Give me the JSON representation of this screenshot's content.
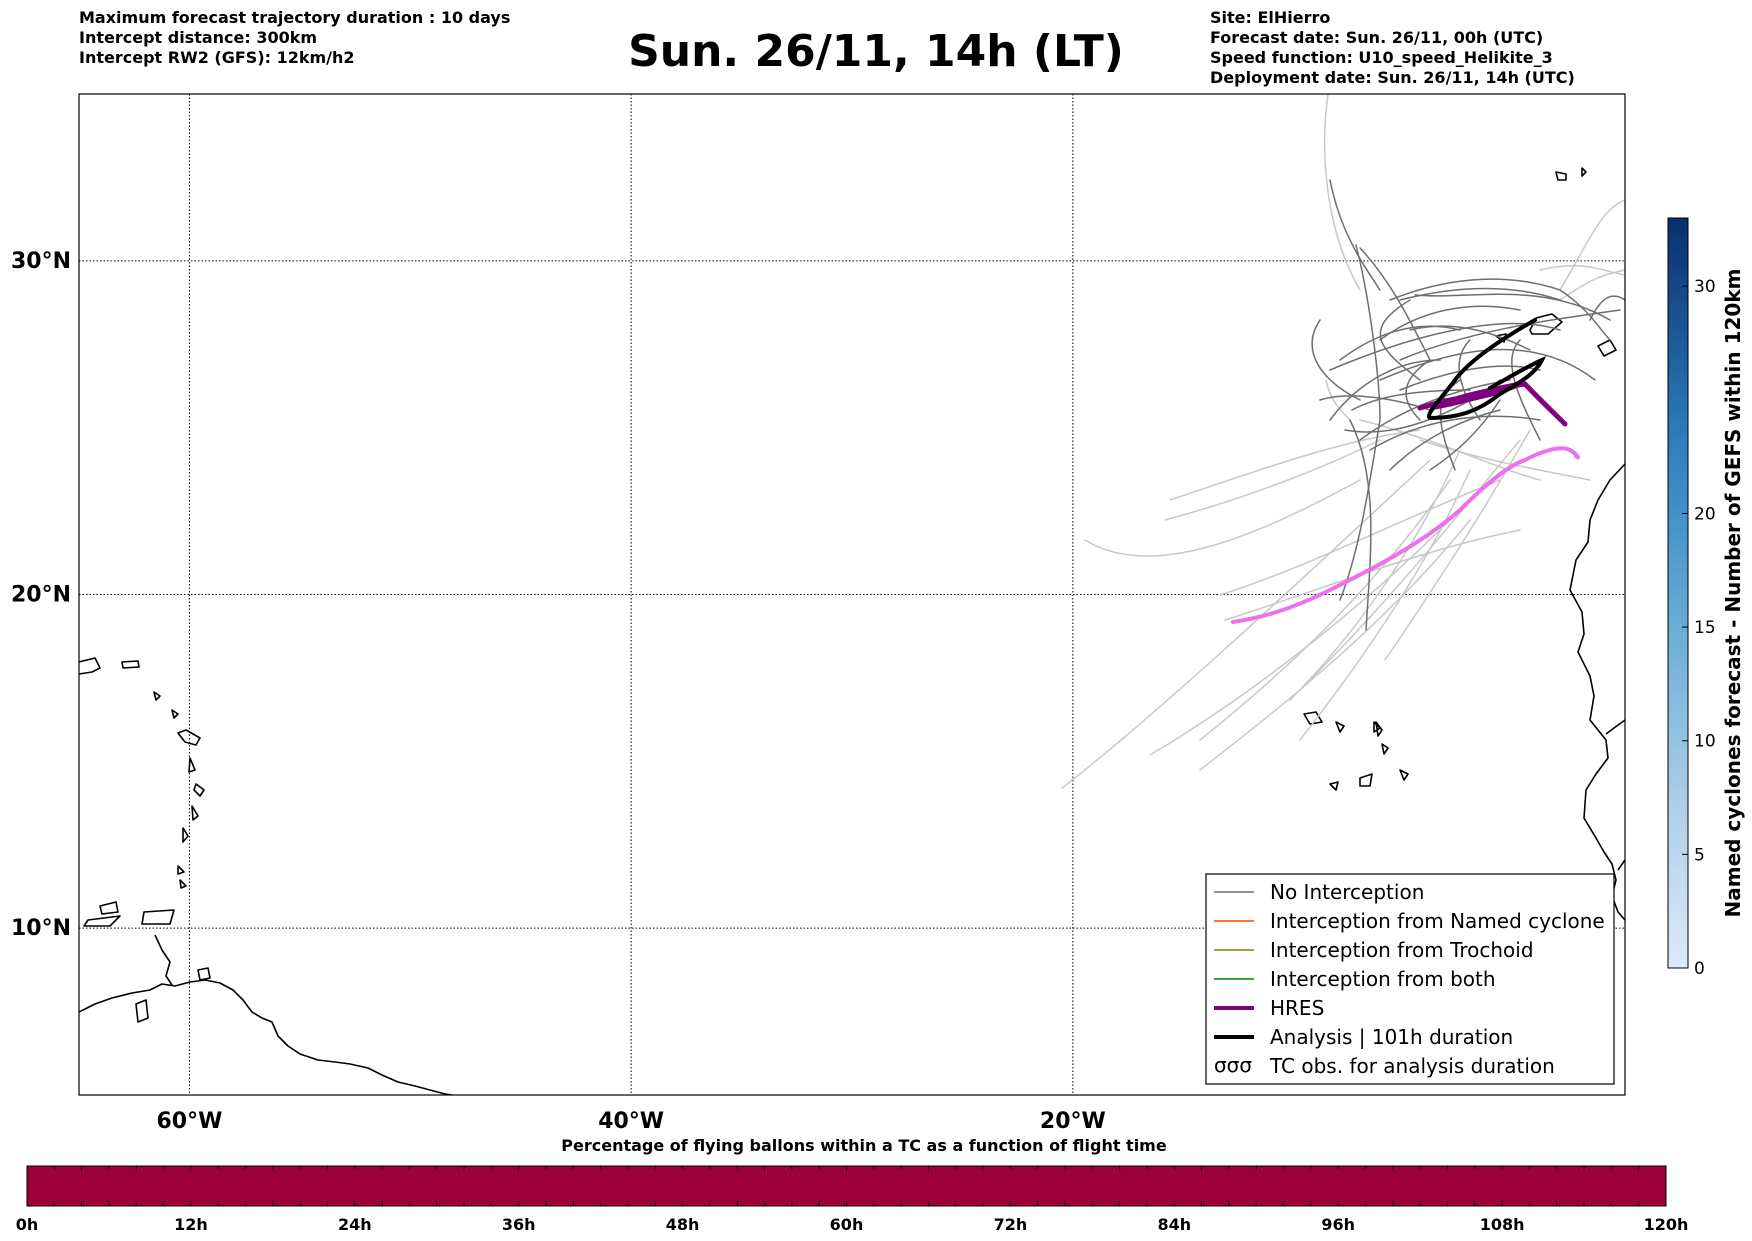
{
  "header": {
    "title": "Sun. 26/11, 14h (LT)",
    "left_lines": [
      "Maximum forecast trajectory duration : 10 days",
      "Intercept distance: 300km",
      "Intercept RW2 (GFS):  12km/h2"
    ],
    "right_lines": [
      "Site: ElHierro",
      "Forecast date: Sun. 26/11, 00h (UTC)",
      "Speed function: U10_speed_Helikite_3",
      "Deployment date: Sun. 26/11, 14h (UTC)"
    ]
  },
  "map": {
    "lon_range": [
      -65,
      5
    ],
    "lat_range": [
      5,
      35
    ],
    "lat_ticks": [
      {
        "value": 30,
        "label": "30°N"
      },
      {
        "value": 20,
        "label": "20°N"
      },
      {
        "value": 10,
        "label": "10°N"
      }
    ],
    "lon_ticks": [
      {
        "value": -60,
        "label": "60°W"
      },
      {
        "value": -40,
        "label": "40°W"
      },
      {
        "value": -20,
        "label": "20°W"
      }
    ],
    "grid": true,
    "legend": {
      "position": "bottom-right",
      "items": [
        {
          "label": "No Interception",
          "color": "#6e6e6e",
          "style": "thin"
        },
        {
          "label": "Interception from Named cyclone",
          "color": "#ff4500",
          "style": "thin"
        },
        {
          "label": "Interception from Trochoid",
          "color": "#808000",
          "style": "thin"
        },
        {
          "label": "Interception from both",
          "color": "#008000",
          "style": "thin"
        },
        {
          "label": "HRES",
          "color": "#800080",
          "style": "thick"
        },
        {
          "label": "Analysis | 101h duration",
          "color": "#000000",
          "style": "thick"
        },
        {
          "label": "TC obs. for analysis duration",
          "color": "#000000",
          "style": "symbol"
        }
      ]
    },
    "colors": {
      "trajectory_dark": "#6e6e6e",
      "trajectory_light": "#c8c8c8",
      "hres_main": "#800080",
      "hres_extension": "#ee70ee",
      "analysis": "#000000"
    }
  },
  "colorbar": {
    "label": "Named cyclones forecast - Number of GEFS within 120km",
    "ticks": [
      {
        "value": 0,
        "label": "0"
      },
      {
        "value": 5,
        "label": "5"
      },
      {
        "value": 10,
        "label": "10"
      },
      {
        "value": 15,
        "label": "15"
      },
      {
        "value": 20,
        "label": "20"
      },
      {
        "value": 30,
        "label": "30"
      }
    ],
    "range": [
      0,
      33
    ],
    "color_low": "#dde9f7",
    "color_high": "#08306b"
  },
  "timebar": {
    "title": "Percentage of flying ballons within a TC as a function of flight time",
    "color": "#9e003a",
    "ticks": [
      "0h",
      "12h",
      "24h",
      "36h",
      "48h",
      "60h",
      "72h",
      "84h",
      "96h",
      "108h",
      "120h"
    ]
  }
}
